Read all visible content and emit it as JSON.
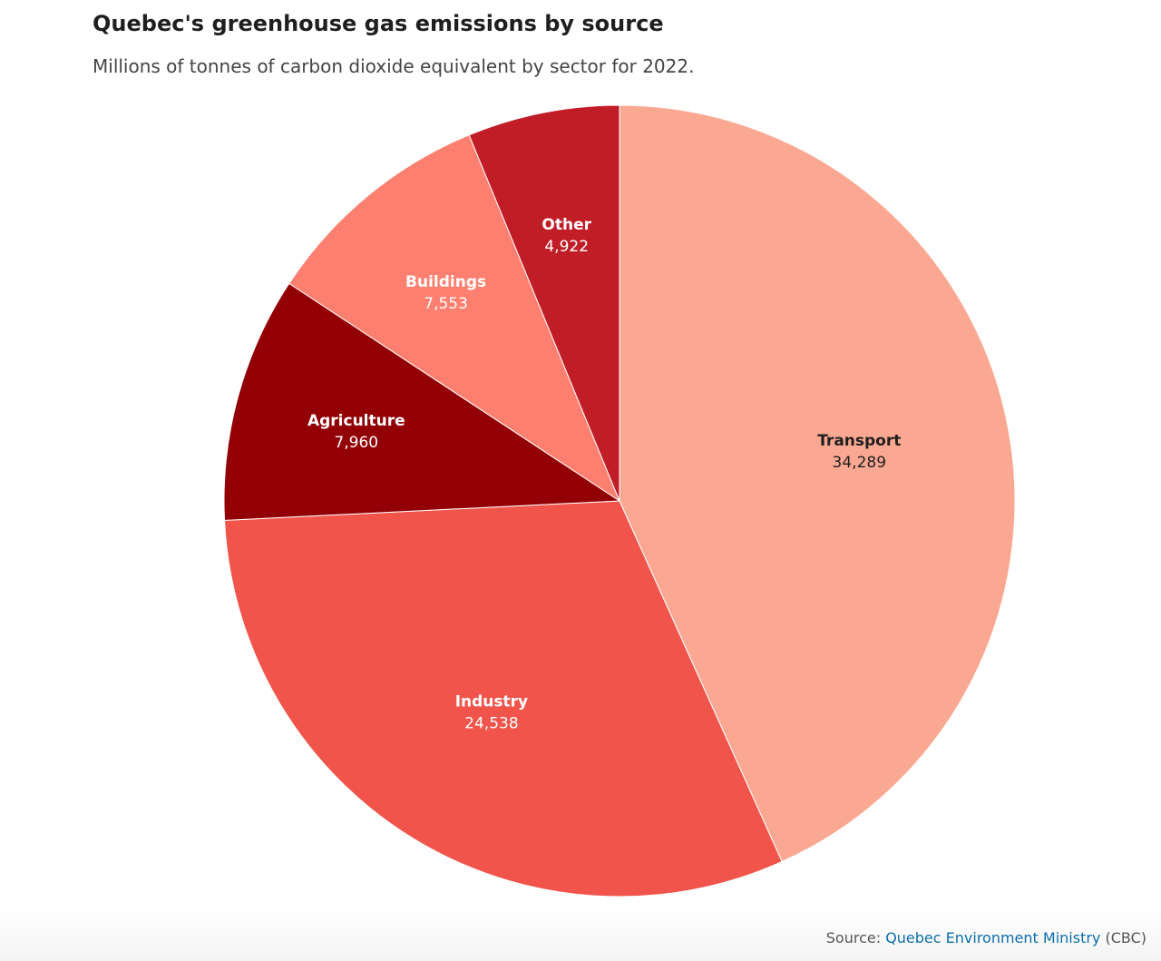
{
  "header": {
    "title": "Quebec's greenhouse gas emissions by source",
    "subtitle": "Millions of tonnes of carbon dioxide equivalent by sector for 2022."
  },
  "chart_data": {
    "type": "pie",
    "title": "Quebec's greenhouse gas emissions by source",
    "subtitle": "Millions of tonnes of carbon dioxide equivalent by sector for 2022.",
    "start": "top, clockwise",
    "slices": [
      {
        "label": "Transport",
        "value": 34289,
        "value_label": "34,289",
        "color": "#fba893",
        "text_color": "#1f1f1f"
      },
      {
        "label": "Industry",
        "value": 24538,
        "value_label": "24,538",
        "color": "#f0544a",
        "text_color": "#ffffff"
      },
      {
        "label": "Agriculture",
        "value": 7960,
        "value_label": "7,960",
        "color": "#920005",
        "text_color": "#ffffff"
      },
      {
        "label": "Buildings",
        "value": 7553,
        "value_label": "7,553",
        "color": "#fd7f6f",
        "text_color": "#ffffff"
      },
      {
        "label": "Other",
        "value": 4922,
        "value_label": "4,922",
        "color": "#c11d27",
        "text_color": "#ffffff"
      }
    ]
  },
  "footer": {
    "source_prefix": "Source: ",
    "source_link": "Quebec Environment Ministry",
    "source_suffix": " (CBC)",
    "link_color": "#0b6ea8"
  }
}
